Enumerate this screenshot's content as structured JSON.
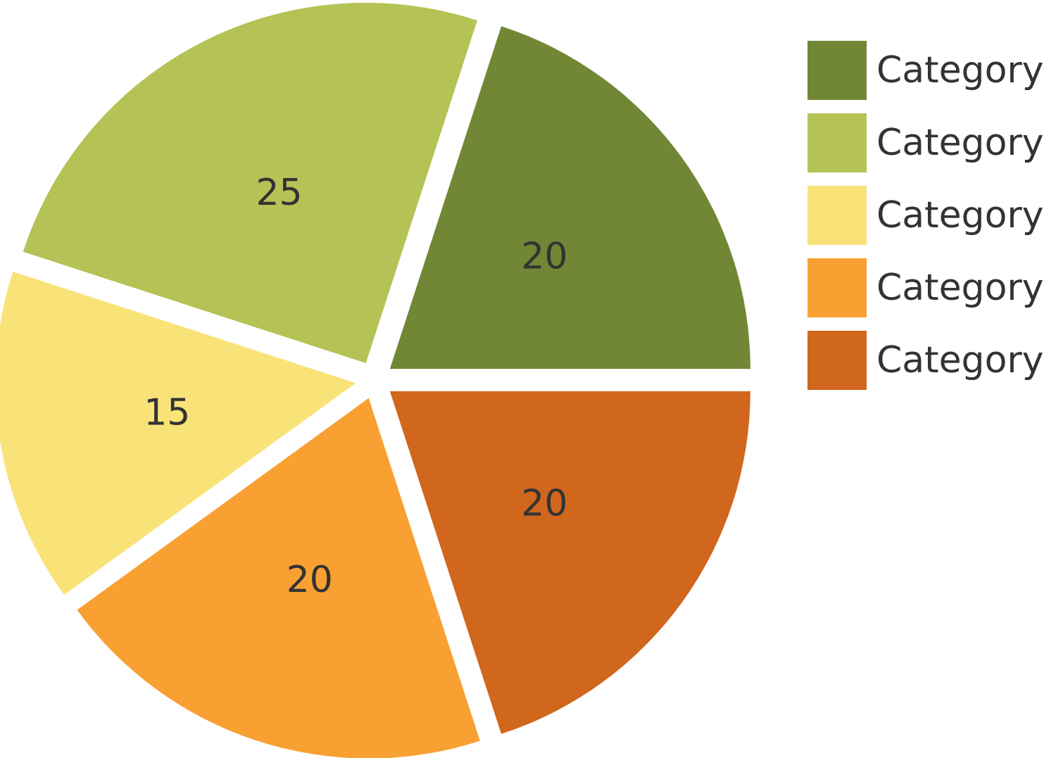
{
  "chart_data": {
    "type": "pie",
    "categories": [
      "Category",
      "Category",
      "Category",
      "Category",
      "Category"
    ],
    "values": [
      20,
      25,
      15,
      20,
      20
    ],
    "colors": [
      "#718735",
      "#B5C255",
      "#F9E278",
      "#F9A033",
      "#D1661D"
    ],
    "data_labels": [
      "20",
      "25",
      "15",
      "20",
      "20"
    ],
    "exploded": true,
    "legend": "right",
    "title": ""
  },
  "legend": {
    "items": [
      {
        "label": "Category",
        "color": "#718735"
      },
      {
        "label": "Category",
        "color": "#B5C255"
      },
      {
        "label": "Category",
        "color": "#F9E278"
      },
      {
        "label": "Category",
        "color": "#F9A033"
      },
      {
        "label": "Category",
        "color": "#D1661D"
      }
    ]
  }
}
